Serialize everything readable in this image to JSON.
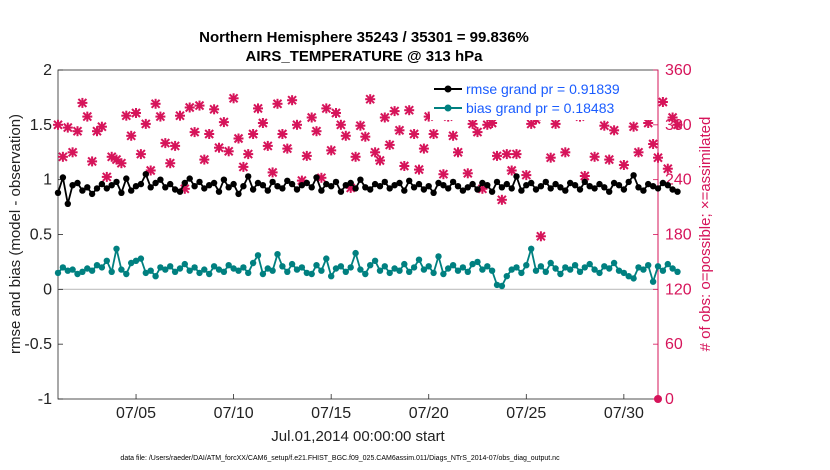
{
  "chart_data": {
    "type": "line",
    "title_line1": "Northern Hemisphere 35243 / 35301 = 99.836%",
    "title_line2": "AIRS_TEMPERATURE @ 313 hPa",
    "ylabel_left": "rmse and bias (model - observation)",
    "ylabel_right": "# of obs: o=possible; ×=assimilated",
    "xlabel": "Jul.01,2014 00:00:00 start",
    "footer": "data file: /Users/raeder/DAI/ATM_forcXX/CAM6_setup/f.e21.FHIST_BGC.f09_025.CAM6assim.011/Diags_NTrS_2014-07/obs_diag_output.nc",
    "ylim_left": [
      -1,
      2
    ],
    "ylim_right": [
      0,
      360
    ],
    "xlim": [
      1,
      31.75
    ],
    "yticks_left": [
      "-1",
      "-0.5",
      "0",
      "0.5",
      "1",
      "1.5",
      "2"
    ],
    "yticks_right": [
      "0",
      "60",
      "120",
      "180",
      "240",
      "300",
      "360"
    ],
    "xticks": [
      {
        "day": 5,
        "label": "07/05"
      },
      {
        "day": 10,
        "label": "07/10"
      },
      {
        "day": 15,
        "label": "07/15"
      },
      {
        "day": 20,
        "label": "07/20"
      },
      {
        "day": 25,
        "label": "07/25"
      },
      {
        "day": 30,
        "label": "07/30"
      }
    ],
    "legend": [
      {
        "label": "rmse grand pr = 0.91839",
        "color": "#000000"
      },
      {
        "label": "bias grand pr = 0.18483",
        "color": "#008080"
      }
    ],
    "x_start": 1,
    "x_step": 0.25,
    "series": [
      {
        "name": "rmse",
        "axis": "left",
        "color": "#000000",
        "values": [
          0.88,
          1.02,
          0.78,
          0.95,
          0.97,
          0.9,
          0.93,
          0.87,
          0.92,
          0.96,
          0.92,
          0.95,
          0.98,
          0.88,
          1.01,
          0.9,
          0.94,
          0.96,
          1.05,
          0.93,
          0.97,
          1.0,
          0.93,
          0.96,
          0.91,
          0.89,
          0.97,
          1.01,
          0.94,
          0.98,
          0.92,
          0.95,
          0.97,
          0.89,
          1.0,
          0.93,
          0.96,
          0.87,
          0.94,
          1.03,
          0.91,
          0.97,
          0.95,
          0.9,
          0.98,
          0.94,
          0.92,
          0.99,
          0.96,
          0.91,
          0.95,
          0.97,
          0.93,
          1.02,
          0.9,
          0.96,
          0.94,
          0.98,
          0.89,
          0.95,
          0.97,
          0.92,
          1.0,
          0.93,
          0.91,
          0.96,
          0.94,
          0.98,
          0.92,
          0.95,
          0.97,
          0.9,
          0.99,
          0.93,
          0.96,
          0.91,
          0.94,
          0.88,
          0.97,
          0.95,
          0.92,
          0.98,
          0.94,
          0.9,
          0.93,
          0.96,
          0.91,
          0.97,
          0.95,
          0.89,
          0.98,
          0.93,
          0.96,
          0.92,
          1.03,
          0.9,
          0.95,
          0.97,
          0.91,
          0.94,
          0.98,
          0.92,
          0.96,
          0.93,
          0.9,
          0.97,
          0.95,
          0.91,
          0.98,
          0.94,
          0.92,
          0.96,
          0.93,
          0.89,
          0.97,
          0.95,
          0.91,
          0.98,
          1.04,
          0.93,
          0.9,
          0.96,
          0.94,
          0.92,
          0.97,
          0.95,
          0.91,
          0.89
        ]
      },
      {
        "name": "bias",
        "axis": "left",
        "color": "#008080",
        "values": [
          0.15,
          0.2,
          0.17,
          0.18,
          0.14,
          0.16,
          0.19,
          0.17,
          0.22,
          0.2,
          0.26,
          0.16,
          0.37,
          0.18,
          0.14,
          0.24,
          0.26,
          0.28,
          0.15,
          0.17,
          0.12,
          0.2,
          0.18,
          0.21,
          0.16,
          0.19,
          0.23,
          0.17,
          0.2,
          0.15,
          0.18,
          0.14,
          0.21,
          0.18,
          0.16,
          0.22,
          0.19,
          0.17,
          0.2,
          0.15,
          0.24,
          0.31,
          0.14,
          0.19,
          0.17,
          0.32,
          0.21,
          0.16,
          0.23,
          0.18,
          0.2,
          0.15,
          0.14,
          0.22,
          0.17,
          0.28,
          0.12,
          0.19,
          0.21,
          0.16,
          0.2,
          0.33,
          0.18,
          0.14,
          0.22,
          0.26,
          0.17,
          0.21,
          0.15,
          0.19,
          0.17,
          0.23,
          0.16,
          0.2,
          0.27,
          0.18,
          0.21,
          0.15,
          0.3,
          0.14,
          0.19,
          0.22,
          0.17,
          0.2,
          0.16,
          0.23,
          0.25,
          0.18,
          0.21,
          0.17,
          0.04,
          0.03,
          0.12,
          0.18,
          0.2,
          0.15,
          0.22,
          0.37,
          0.17,
          0.21,
          0.16,
          0.24,
          0.19,
          0.14,
          0.2,
          0.18,
          0.22,
          0.16,
          0.2,
          0.23,
          0.18,
          0.15,
          0.21,
          0.19,
          0.24,
          0.17,
          0.15,
          0.12,
          0.1,
          0.2,
          0.18,
          0.22,
          0.07,
          0.21,
          0.17,
          0.23,
          0.19,
          0.16
        ]
      },
      {
        "name": "obs_count",
        "axis": "right",
        "color": "#d6145a",
        "values": [
          300,
          265,
          297,
          270,
          293,
          324,
          309,
          260,
          293,
          298,
          243,
          265,
          262,
          258,
          310,
          288,
          313,
          268,
          301,
          250,
          323,
          309,
          280,
          258,
          277,
          310,
          230,
          319,
          292,
          321,
          262,
          290,
          317,
          275,
          303,
          271,
          329,
          285,
          254,
          268,
          290,
          318,
          302,
          277,
          248,
          323,
          290,
          274,
          327,
          300,
          239,
          266,
          308,
          293,
          242,
          318,
          272,
          313,
          300,
          288,
          231,
          265,
          299,
          287,
          328,
          270,
          261,
          308,
          278,
          315,
          294,
          255,
          316,
          290,
          251,
          274,
          309,
          290,
          318,
          246,
          309,
          288,
          270,
          318,
          247,
          301,
          292,
          230,
          300,
          302,
          266,
          218,
          268,
          250,
          268,
          320,
          245,
          301,
          306,
          178,
          320,
          264,
          301,
          328,
          270,
          328,
          313,
          309,
          244,
          318,
          265,
          322,
          299,
          262,
          294,
          325,
          256,
          320,
          298,
          270,
          323,
          302,
          279,
          264,
          325,
          252,
          308,
          300
        ]
      }
    ]
  }
}
